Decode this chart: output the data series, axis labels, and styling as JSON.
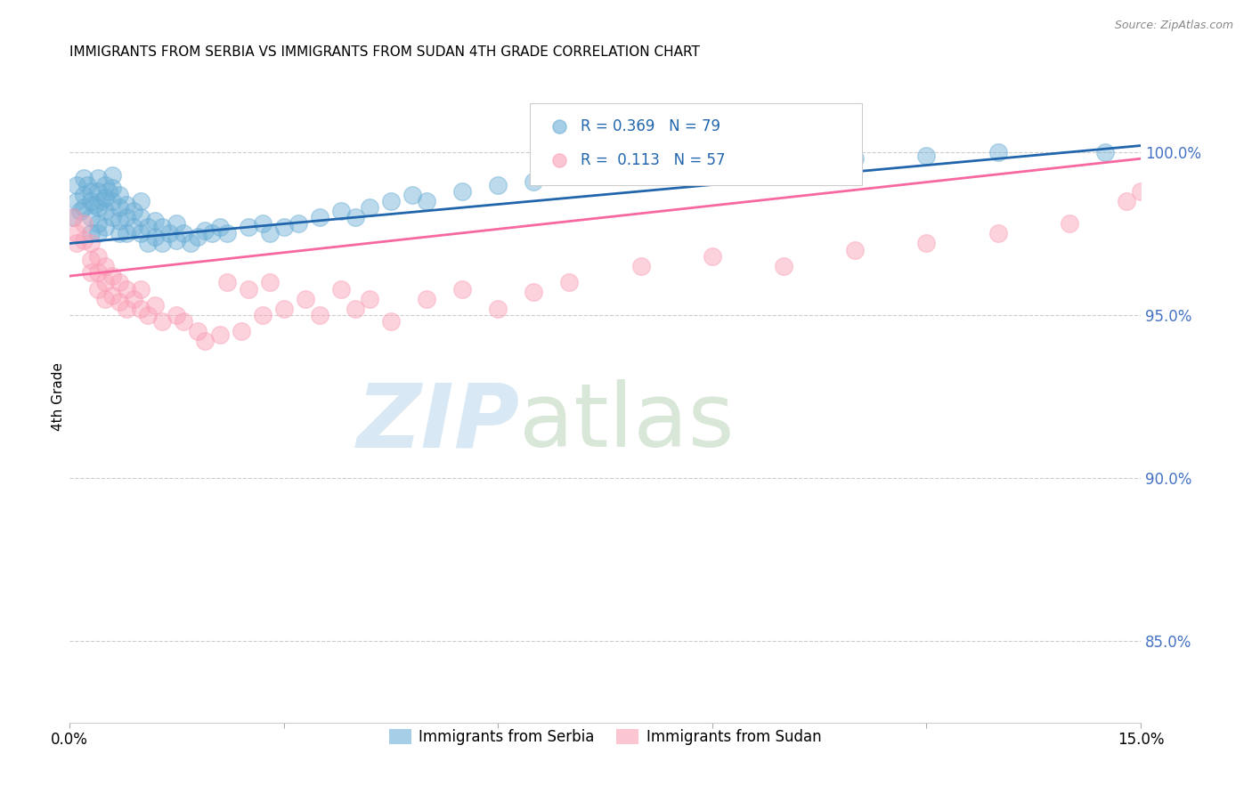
{
  "title": "IMMIGRANTS FROM SERBIA VS IMMIGRANTS FROM SUDAN 4TH GRADE CORRELATION CHART",
  "source": "Source: ZipAtlas.com",
  "ylabel": "4th Grade",
  "ytick_labels": [
    "85.0%",
    "90.0%",
    "95.0%",
    "100.0%"
  ],
  "ytick_values": [
    0.85,
    0.9,
    0.95,
    1.0
  ],
  "xlim": [
    0.0,
    0.15
  ],
  "ylim": [
    0.825,
    1.025
  ],
  "serbia_R": "0.369",
  "serbia_N": "79",
  "sudan_R": "0.113",
  "sudan_N": "57",
  "legend_serbia": "Immigrants from Serbia",
  "legend_sudan": "Immigrants from Sudan",
  "serbia_color": "#6baed6",
  "sudan_color": "#fa9fb5",
  "serbia_line_color": "#2166ac",
  "sudan_line_color": "#f768a1",
  "serbia_line": [
    0.0,
    0.15,
    0.972,
    1.002
  ],
  "sudan_line": [
    0.0,
    0.15,
    0.962,
    0.998
  ],
  "serbia_x": [
    0.0005,
    0.001,
    0.001,
    0.0015,
    0.002,
    0.002,
    0.002,
    0.0025,
    0.003,
    0.003,
    0.003,
    0.003,
    0.0035,
    0.004,
    0.004,
    0.004,
    0.004,
    0.004,
    0.0045,
    0.005,
    0.005,
    0.005,
    0.005,
    0.0055,
    0.006,
    0.006,
    0.006,
    0.006,
    0.007,
    0.007,
    0.007,
    0.007,
    0.008,
    0.008,
    0.008,
    0.009,
    0.009,
    0.01,
    0.01,
    0.01,
    0.011,
    0.011,
    0.012,
    0.012,
    0.013,
    0.013,
    0.014,
    0.015,
    0.015,
    0.016,
    0.017,
    0.018,
    0.019,
    0.02,
    0.021,
    0.022,
    0.025,
    0.027,
    0.028,
    0.03,
    0.032,
    0.035,
    0.038,
    0.04,
    0.042,
    0.045,
    0.048,
    0.05,
    0.055,
    0.06,
    0.065,
    0.07,
    0.08,
    0.09,
    0.1,
    0.11,
    0.12,
    0.13,
    0.145
  ],
  "serbia_y": [
    0.98,
    0.99,
    0.985,
    0.982,
    0.992,
    0.987,
    0.983,
    0.99,
    0.985,
    0.98,
    0.975,
    0.988,
    0.984,
    0.992,
    0.988,
    0.983,
    0.978,
    0.975,
    0.985,
    0.99,
    0.986,
    0.982,
    0.977,
    0.988,
    0.993,
    0.989,
    0.985,
    0.98,
    0.987,
    0.983,
    0.979,
    0.975,
    0.984,
    0.98,
    0.975,
    0.982,
    0.977,
    0.985,
    0.98,
    0.975,
    0.977,
    0.972,
    0.979,
    0.974,
    0.977,
    0.972,
    0.975,
    0.978,
    0.973,
    0.975,
    0.972,
    0.974,
    0.976,
    0.975,
    0.977,
    0.975,
    0.977,
    0.978,
    0.975,
    0.977,
    0.978,
    0.98,
    0.982,
    0.98,
    0.983,
    0.985,
    0.987,
    0.985,
    0.988,
    0.99,
    0.991,
    0.993,
    0.995,
    0.996,
    0.997,
    0.998,
    0.999,
    1.0,
    1.0
  ],
  "sudan_x": [
    0.0005,
    0.001,
    0.001,
    0.002,
    0.002,
    0.003,
    0.003,
    0.003,
    0.004,
    0.004,
    0.004,
    0.005,
    0.005,
    0.005,
    0.006,
    0.006,
    0.007,
    0.007,
    0.008,
    0.008,
    0.009,
    0.01,
    0.01,
    0.011,
    0.012,
    0.013,
    0.015,
    0.016,
    0.018,
    0.019,
    0.021,
    0.022,
    0.024,
    0.025,
    0.027,
    0.028,
    0.03,
    0.033,
    0.035,
    0.038,
    0.04,
    0.042,
    0.045,
    0.05,
    0.055,
    0.06,
    0.065,
    0.07,
    0.08,
    0.09,
    0.1,
    0.11,
    0.12,
    0.13,
    0.14,
    0.148,
    0.15
  ],
  "sudan_y": [
    0.98,
    0.975,
    0.972,
    0.978,
    0.973,
    0.972,
    0.967,
    0.963,
    0.968,
    0.963,
    0.958,
    0.965,
    0.96,
    0.955,
    0.962,
    0.956,
    0.96,
    0.954,
    0.958,
    0.952,
    0.955,
    0.958,
    0.952,
    0.95,
    0.953,
    0.948,
    0.95,
    0.948,
    0.945,
    0.942,
    0.944,
    0.96,
    0.945,
    0.958,
    0.95,
    0.96,
    0.952,
    0.955,
    0.95,
    0.958,
    0.952,
    0.955,
    0.948,
    0.955,
    0.958,
    0.952,
    0.957,
    0.96,
    0.965,
    0.968,
    0.965,
    0.97,
    0.972,
    0.975,
    0.978,
    0.985,
    0.988
  ]
}
